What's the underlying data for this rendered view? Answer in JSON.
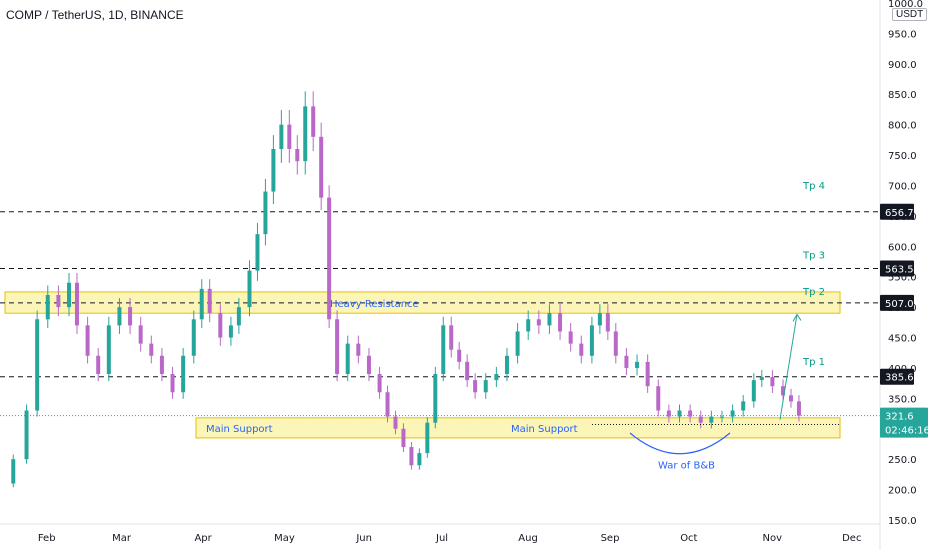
{
  "header": {
    "title": "COMP / TetherUS, 1D, BINANCE",
    "currency": "USDT"
  },
  "colors": {
    "up": "#26a69a",
    "down": "#b968c7",
    "zone_fill": "#fcf5b8",
    "zone_stroke": "#e6c000",
    "level_line": "#131722",
    "target_text": "#089981",
    "annotation_text": "#2962ff",
    "arc": "#2962ff",
    "arrow": "#26a69a",
    "current_price_tag": "#26a69a",
    "level_tag": "#131722"
  },
  "chart_data": {
    "type": "candlestick",
    "title": "COMP / TetherUS, 1D, BINANCE",
    "x_axis": {
      "type": "date",
      "tick_labels": [
        "Feb",
        "Mar",
        "Apr",
        "May",
        "Jun",
        "Jul",
        "Aug",
        "Sep",
        "Oct",
        "Nov",
        "Dec"
      ],
      "range": [
        "2021-01-20",
        "2021-12-10"
      ]
    },
    "y_axis": {
      "unit": "USDT",
      "range": [
        150,
        1000
      ],
      "tick_labels": [
        "150.0",
        "200.0",
        "250.0",
        "350.0",
        "400.0",
        "450.0",
        "500.0",
        "550.0",
        "600.0",
        "650.0",
        "700.0",
        "750.0",
        "800.0",
        "850.0",
        "900.0",
        "950.0",
        "1000.0"
      ],
      "ticks": [
        150,
        200,
        250,
        350,
        400,
        450,
        500,
        550,
        600,
        650,
        700,
        750,
        800,
        850,
        900,
        950,
        1000
      ]
    },
    "grid": false,
    "closes": [
      [
        "2021-01-20",
        210
      ],
      [
        "2021-01-25",
        250
      ],
      [
        "2021-01-30",
        330
      ],
      [
        "2021-02-03",
        480
      ],
      [
        "2021-02-07",
        520
      ],
      [
        "2021-02-11",
        500
      ],
      [
        "2021-02-15",
        540
      ],
      [
        "2021-02-18",
        470
      ],
      [
        "2021-02-22",
        420
      ],
      [
        "2021-02-26",
        390
      ],
      [
        "2021-03-02",
        470
      ],
      [
        "2021-03-06",
        500
      ],
      [
        "2021-03-10",
        470
      ],
      [
        "2021-03-14",
        440
      ],
      [
        "2021-03-18",
        420
      ],
      [
        "2021-03-22",
        390
      ],
      [
        "2021-03-26",
        360
      ],
      [
        "2021-03-30",
        420
      ],
      [
        "2021-04-03",
        480
      ],
      [
        "2021-04-06",
        530
      ],
      [
        "2021-04-09",
        490
      ],
      [
        "2021-04-13",
        450
      ],
      [
        "2021-04-17",
        470
      ],
      [
        "2021-04-20",
        500
      ],
      [
        "2021-04-24",
        560
      ],
      [
        "2021-04-27",
        620
      ],
      [
        "2021-04-30",
        690
      ],
      [
        "2021-05-03",
        760
      ],
      [
        "2021-05-06",
        800
      ],
      [
        "2021-05-09",
        760
      ],
      [
        "2021-05-12",
        740
      ],
      [
        "2021-05-15",
        830
      ],
      [
        "2021-05-18",
        780
      ],
      [
        "2021-05-21",
        680
      ],
      [
        "2021-05-24",
        480
      ],
      [
        "2021-05-27",
        390
      ],
      [
        "2021-05-31",
        440
      ],
      [
        "2021-06-04",
        420
      ],
      [
        "2021-06-08",
        390
      ],
      [
        "2021-06-12",
        360
      ],
      [
        "2021-06-15",
        320
      ],
      [
        "2021-06-18",
        300
      ],
      [
        "2021-06-21",
        270
      ],
      [
        "2021-06-24",
        240
      ],
      [
        "2021-06-27",
        260
      ],
      [
        "2021-06-30",
        310
      ],
      [
        "2021-07-03",
        390
      ],
      [
        "2021-07-06",
        470
      ],
      [
        "2021-07-09",
        430
      ],
      [
        "2021-07-12",
        410
      ],
      [
        "2021-07-15",
        380
      ],
      [
        "2021-07-18",
        360
      ],
      [
        "2021-07-22",
        380
      ],
      [
        "2021-07-26",
        390
      ],
      [
        "2021-07-30",
        420
      ],
      [
        "2021-08-03",
        460
      ],
      [
        "2021-08-07",
        480
      ],
      [
        "2021-08-11",
        470
      ],
      [
        "2021-08-15",
        490
      ],
      [
        "2021-08-19",
        460
      ],
      [
        "2021-08-23",
        440
      ],
      [
        "2021-08-27",
        420
      ],
      [
        "2021-08-31",
        470
      ],
      [
        "2021-09-03",
        490
      ],
      [
        "2021-09-06",
        460
      ],
      [
        "2021-09-09",
        420
      ],
      [
        "2021-09-13",
        400
      ],
      [
        "2021-09-17",
        410
      ],
      [
        "2021-09-21",
        370
      ],
      [
        "2021-09-25",
        330
      ],
      [
        "2021-09-29",
        320
      ],
      [
        "2021-10-03",
        330
      ],
      [
        "2021-10-07",
        320
      ],
      [
        "2021-10-11",
        310
      ],
      [
        "2021-10-15",
        320
      ],
      [
        "2021-10-19",
        320
      ],
      [
        "2021-10-23",
        330
      ],
      [
        "2021-10-27",
        345
      ],
      [
        "2021-10-31",
        380
      ],
      [
        "2021-11-03",
        385
      ],
      [
        "2021-11-07",
        370
      ],
      [
        "2021-11-11",
        355
      ],
      [
        "2021-11-14",
        345
      ],
      [
        "2021-11-17",
        321.6
      ]
    ],
    "last_price": 321.6,
    "horizontal_levels": [
      656.7,
      563.5,
      507.0,
      385.6
    ],
    "price_tags": [
      "656.7",
      "563.5",
      "507.0",
      "385.6",
      "321.6"
    ],
    "countdown": "02:46:16",
    "zones": [
      {
        "label": "Heavy Resistance",
        "from": 490,
        "to": 525
      },
      {
        "label": "Main Support",
        "from": 285,
        "to": 318
      }
    ],
    "support_labels": [
      "Main Support",
      "Main Support"
    ],
    "targets": [
      "Tp 4",
      "Tp 3",
      "Tp 2",
      "Tp 1"
    ],
    "pattern_label": "War of B&B"
  }
}
